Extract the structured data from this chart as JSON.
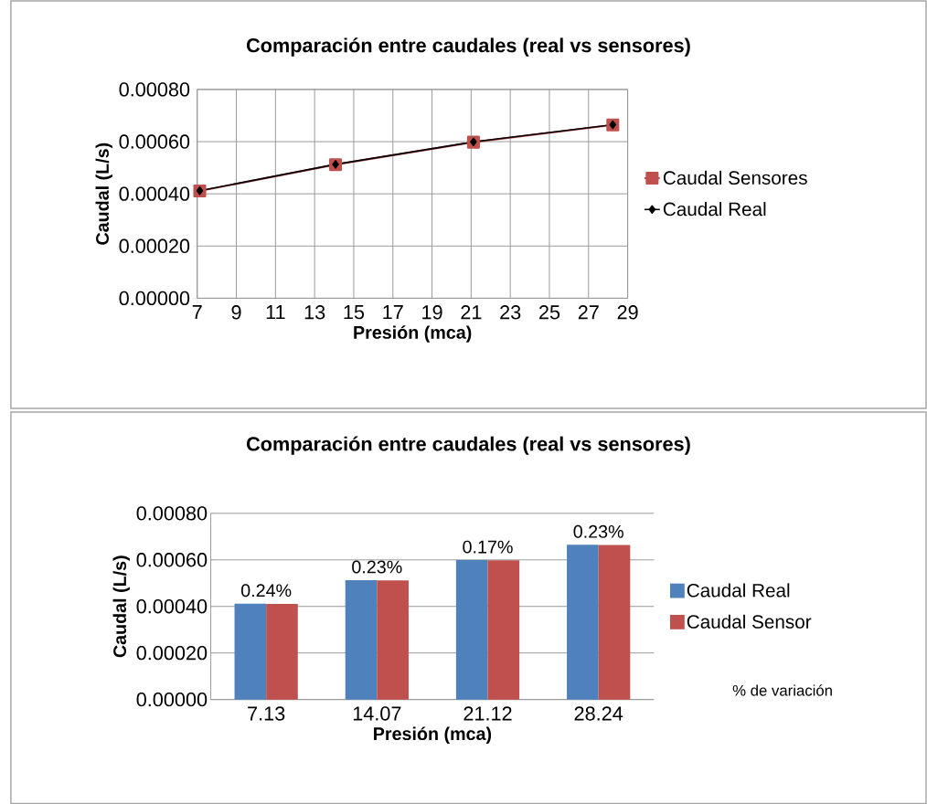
{
  "chart_data": [
    {
      "type": "line",
      "title": "Comparación entre caudales  (real vs sensores)",
      "xlabel": "Presión (mca)",
      "ylabel": "Caudal (L/s)",
      "xlim": [
        7,
        29
      ],
      "xticks": [
        7,
        9,
        11,
        13,
        15,
        17,
        19,
        21,
        23,
        25,
        27,
        29
      ],
      "ylim": [
        0,
        0.0008
      ],
      "yticks": [
        {
          "value": 0,
          "label": "0.00000"
        },
        {
          "value": 0.0002,
          "label": "0.00020"
        },
        {
          "value": 0.0004,
          "label": "0.00040"
        },
        {
          "value": 0.0006,
          "label": "0.00060"
        },
        {
          "value": 0.0008,
          "label": "0.00080"
        }
      ],
      "grid": true,
      "legend": "right",
      "series": [
        {
          "name": "Caudal Real",
          "color": "#000000",
          "marker": "diamond",
          "x": [
            7.13,
            14.07,
            21.12,
            28.24
          ],
          "values": [
            0.000412,
            0.000513,
            0.000599,
            0.000665
          ]
        },
        {
          "name": "Caudal Sensores",
          "color": "#c0504d",
          "marker": "square",
          "x": [
            7.13,
            14.07,
            21.12,
            28.24
          ],
          "values": [
            0.000411,
            0.000512,
            0.000598,
            0.000664
          ]
        }
      ]
    },
    {
      "type": "bar",
      "title": "Comparación entre caudales (real vs sensores)",
      "xlabel": "Presión (mca)",
      "ylabel": "Caudal (L/s)",
      "categories": [
        "7.13",
        "14.07",
        "21.12",
        "28.24"
      ],
      "ylim": [
        0,
        0.0008
      ],
      "yticks": [
        {
          "value": 0,
          "label": "0.00000"
        },
        {
          "value": 0.0002,
          "label": "0.00020"
        },
        {
          "value": 0.0004,
          "label": "0.00040"
        },
        {
          "value": 0.0006,
          "label": "0.00060"
        },
        {
          "value": 0.0008,
          "label": "0.00080"
        }
      ],
      "grid": "y",
      "legend": "right",
      "series": [
        {
          "name": "Caudal Real",
          "color": "#4f81bd",
          "values": [
            0.000412,
            0.000513,
            0.000599,
            0.000665
          ]
        },
        {
          "name": "Caudal Sensor",
          "color": "#c0504d",
          "values": [
            0.000411,
            0.000512,
            0.000598,
            0.000664
          ]
        }
      ],
      "annotations": [
        {
          "text": "0.24%",
          "x": "7.13",
          "y": 0.000412
        },
        {
          "text": "0.23%",
          "x": "14.07",
          "y": 0.000513
        },
        {
          "text": "0.17%",
          "x": "21.12",
          "y": 0.000599
        },
        {
          "text": "0.23%",
          "x": "28.24",
          "y": 0.000665
        },
        "% de variación"
      ]
    }
  ]
}
